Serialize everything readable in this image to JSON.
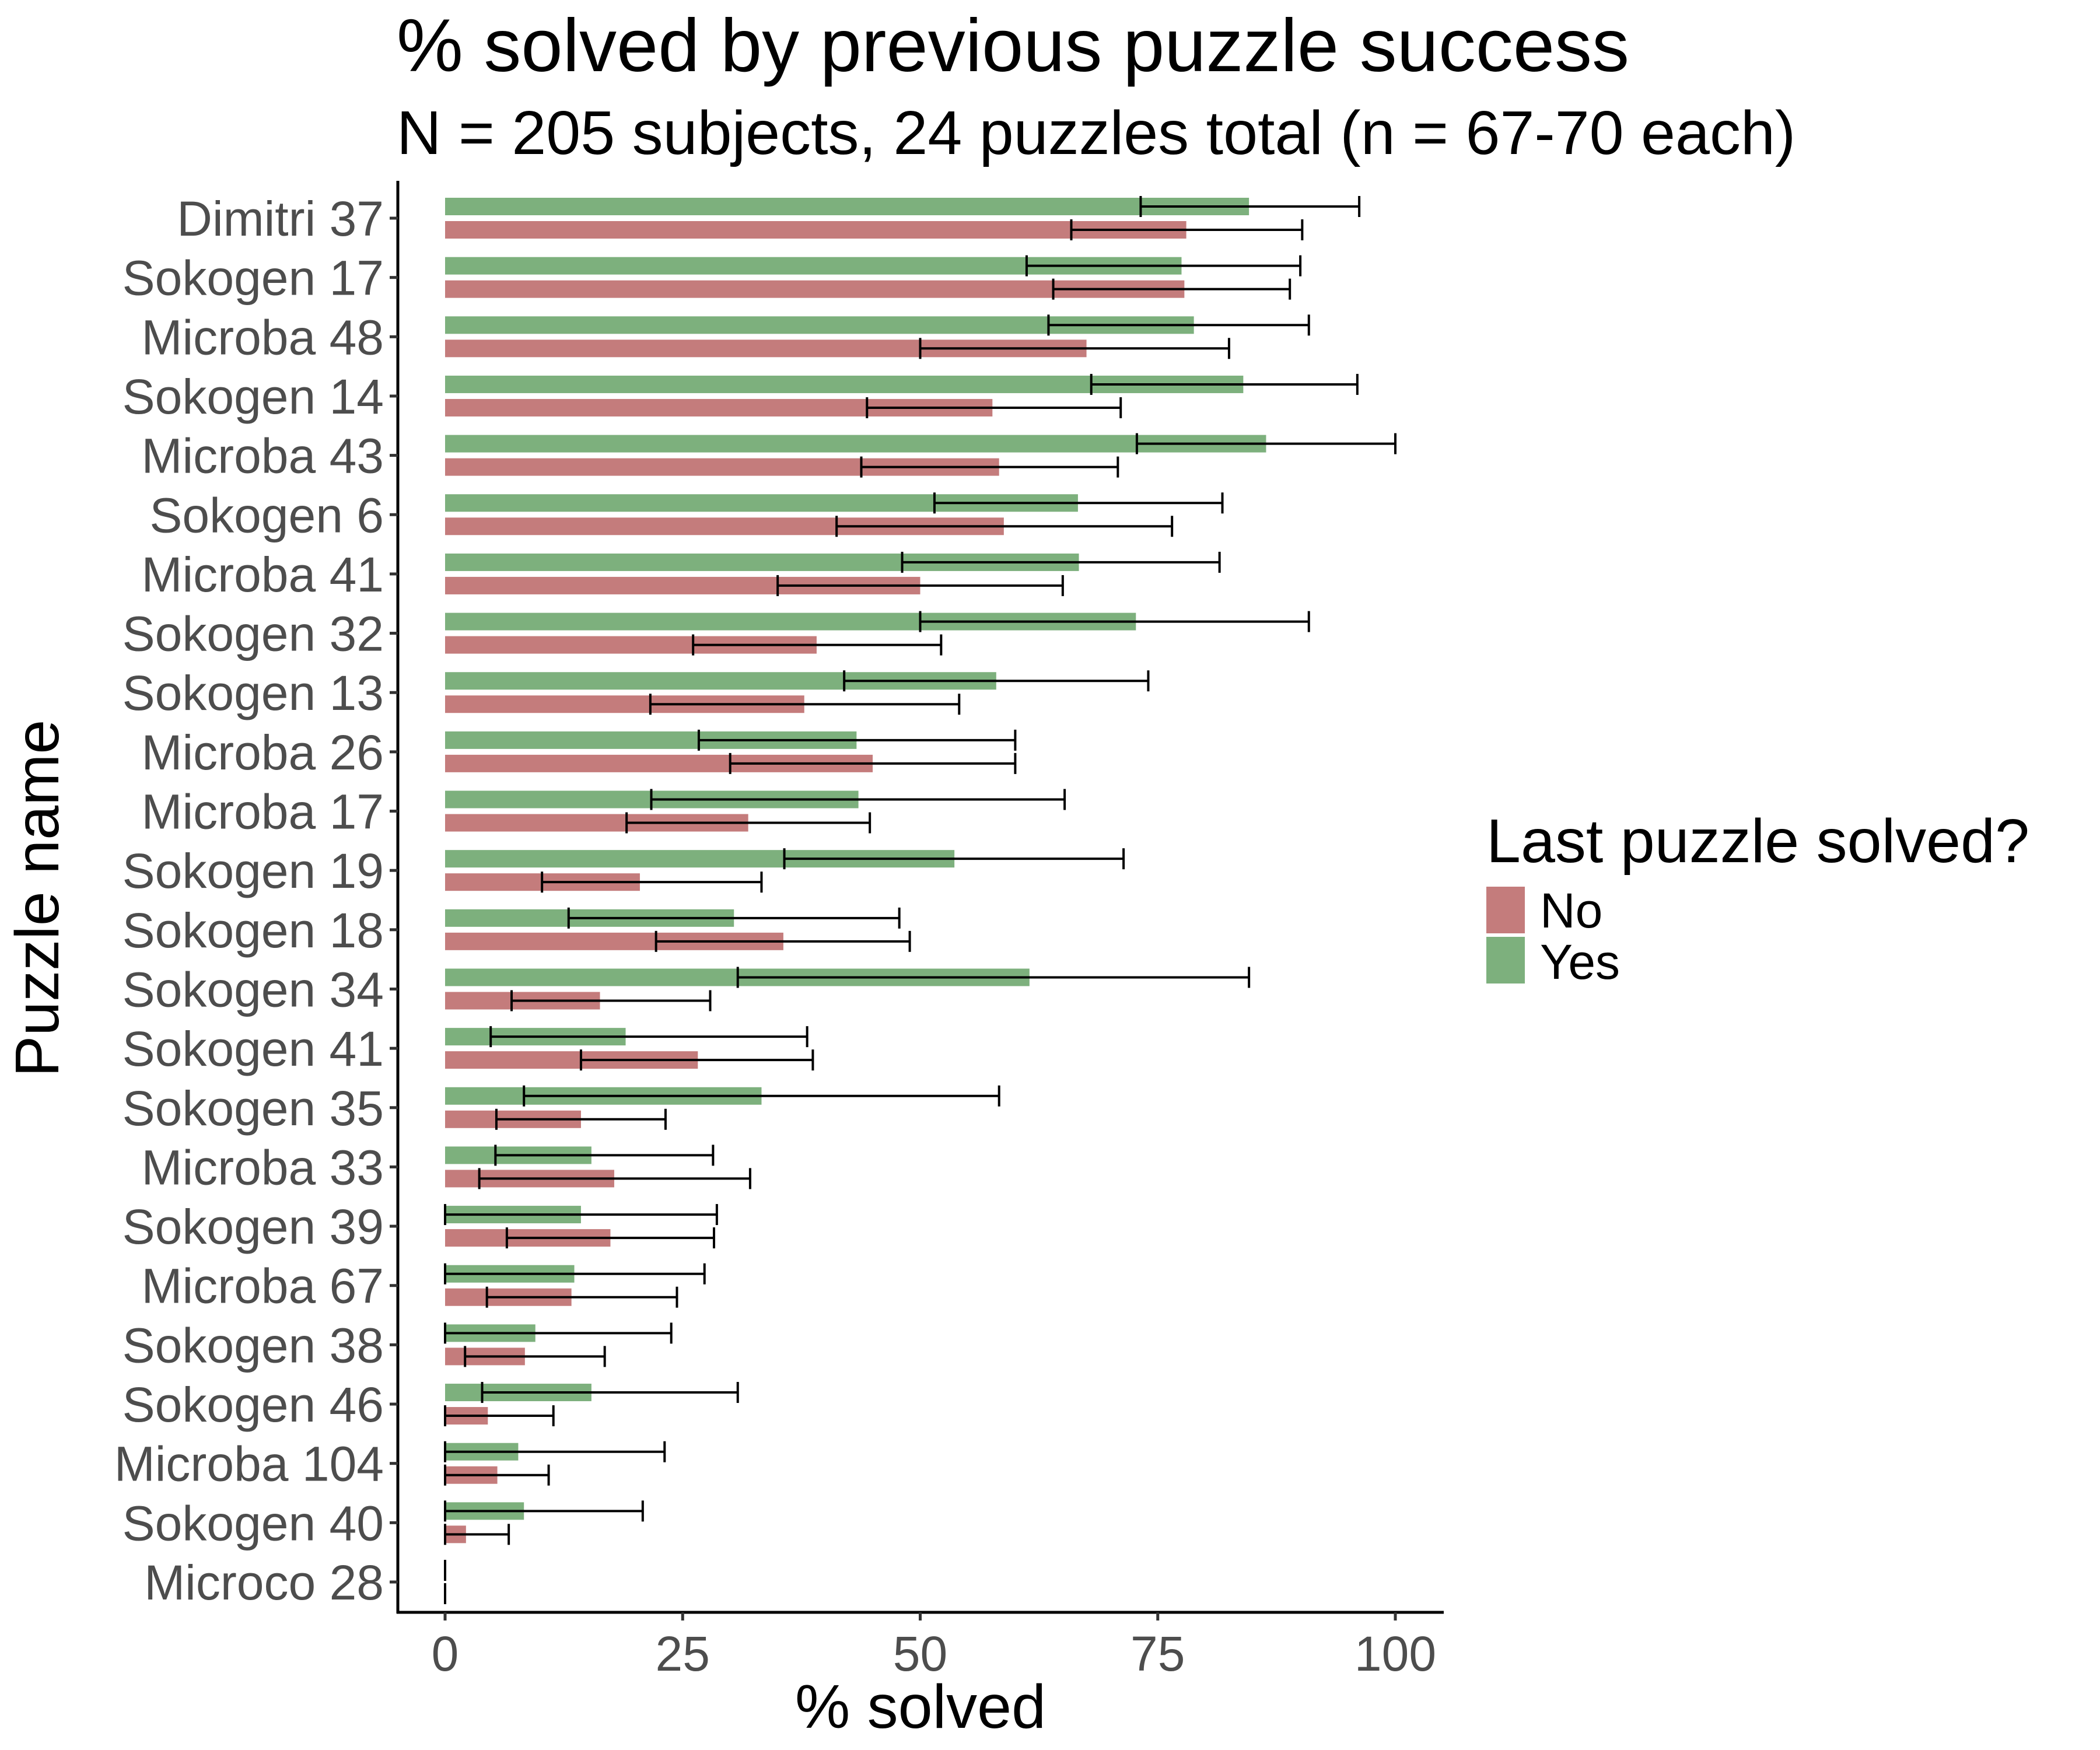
{
  "chart_data": {
    "type": "bar",
    "orientation": "horizontal",
    "title": "% solved by previous puzzle success",
    "subtitle": "N = 205 subjects, 24 puzzles total (n = 67-70 each)",
    "xlabel": "% solved",
    "ylabel": "Puzzle name",
    "xlim": [
      -5,
      105
    ],
    "xticks": [
      0,
      25,
      50,
      75,
      100
    ],
    "grid": false,
    "legend": {
      "title": "Last puzzle solved?",
      "position": "right",
      "entries": [
        "No",
        "Yes"
      ]
    },
    "colors": {
      "No": "#c47c7c",
      "Yes": "#7db07d"
    },
    "categories": [
      "Dimitri 37",
      "Sokogen 17",
      "Microba 48",
      "Sokogen 14",
      "Microba 43",
      "Sokogen 6",
      "Microba 41",
      "Sokogen 32",
      "Sokogen 13",
      "Microba 26",
      "Microba 17",
      "Sokogen 19",
      "Sokogen 18",
      "Sokogen 34",
      "Sokogen 41",
      "Sokogen 35",
      "Microba 33",
      "Sokogen 39",
      "Microba 67",
      "Sokogen 38",
      "Sokogen 46",
      "Microba 104",
      "Sokogen 40",
      "Microco 28"
    ],
    "series": [
      {
        "name": "Yes",
        "values": [
          84.6,
          77.5,
          78.8,
          84.0,
          86.4,
          66.6,
          66.7,
          72.7,
          58.0,
          43.3,
          43.5,
          53.6,
          30.4,
          61.5,
          19.0,
          33.3,
          15.4,
          14.3,
          13.6,
          9.5,
          15.4,
          7.7,
          8.3,
          0
        ],
        "ci_low": [
          73.2,
          61.2,
          63.5,
          68.0,
          72.8,
          51.5,
          48.1,
          50.0,
          42.0,
          26.7,
          21.7,
          35.7,
          13.0,
          30.8,
          4.8,
          8.3,
          5.3,
          0,
          0,
          0,
          3.9,
          0,
          0,
          0
        ],
        "ci_high": [
          96.2,
          90.0,
          90.9,
          96.0,
          100,
          81.8,
          81.5,
          90.9,
          74.0,
          60.0,
          65.2,
          71.4,
          47.8,
          84.6,
          38.1,
          58.3,
          28.2,
          28.6,
          27.3,
          23.8,
          30.8,
          23.1,
          20.8,
          0
        ]
      },
      {
        "name": "No",
        "values": [
          78.0,
          77.8,
          67.5,
          57.6,
          58.3,
          58.8,
          50.0,
          39.1,
          37.8,
          45.0,
          31.9,
          20.5,
          35.6,
          16.3,
          26.6,
          14.3,
          17.8,
          17.4,
          13.3,
          8.4,
          4.5,
          5.5,
          2.2,
          0
        ],
        "ci_low": [
          65.9,
          64.0,
          50.0,
          44.4,
          43.8,
          41.2,
          35.0,
          26.1,
          21.6,
          30.0,
          19.1,
          10.2,
          22.2,
          7.0,
          14.3,
          5.4,
          3.6,
          6.5,
          4.4,
          2.1,
          0,
          0,
          0,
          0
        ],
        "ci_high": [
          90.2,
          88.9,
          82.5,
          71.1,
          70.8,
          76.5,
          65.0,
          52.2,
          54.1,
          60.0,
          44.7,
          33.3,
          48.9,
          27.9,
          38.7,
          23.2,
          32.1,
          28.3,
          24.4,
          16.8,
          11.4,
          10.9,
          6.7,
          0
        ]
      }
    ]
  }
}
